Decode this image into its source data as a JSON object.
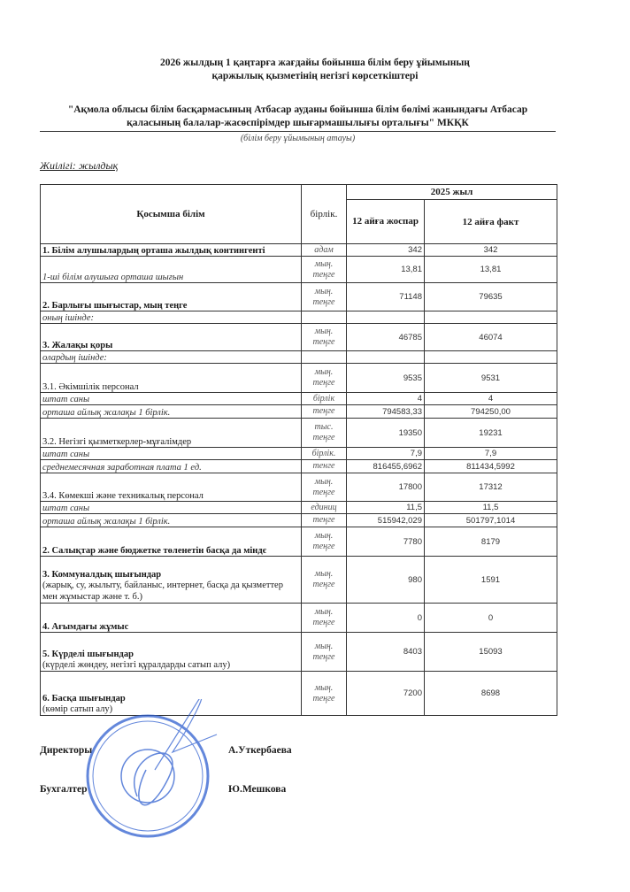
{
  "header": {
    "title_line1": "2026 жылдың 1 қаңтарға жағдайы бойынша білім беру ұйымының",
    "title_line2": "қаржылық қызметінің негізгі көрсеткіштері",
    "org_line1": "\"Ақмола облысы білім басқармасының Атбасар ауданы бойынша білім бөлімі жанындағы Атбасар",
    "org_line2": "қаласының балалар-жасөспірімдер шығармашылығы орталығы\" МКҚК",
    "org_caption": "(білім беру ұйымының атауы)",
    "frequency": "Жиілігі: жылдық"
  },
  "table": {
    "col_name": "Қосымша білім",
    "col_unit": "бірлік.",
    "year_header": "2025 жыл",
    "col_plan": "12 айға жоспар",
    "col_fact": "12 айға факт",
    "rows": [
      {
        "label": "1. Білім алушылардың орташа жылдық контингенті",
        "emphasis": "bold",
        "unit": "адам",
        "plan": "342",
        "fact": "342"
      },
      {
        "label": "1-ші білім алушыға орташа шығын",
        "emphasis": "italic",
        "unit": "мың. теңге",
        "plan": "13,81",
        "fact": "13,81"
      },
      {
        "label": "2. Барлығы шығыстар, мың теңге",
        "emphasis": "bold",
        "unit": "мың. теңге",
        "plan": "71148",
        "fact": "79635"
      },
      {
        "label": "оның ішінде:",
        "emphasis": "italic",
        "unit": "",
        "plan": "",
        "fact": ""
      },
      {
        "label": "3. Жалақы қоры",
        "emphasis": "bold",
        "unit": "мың. теңге",
        "plan": "46785",
        "fact": "46074"
      },
      {
        "label": "олардың ішінде:",
        "emphasis": "italic",
        "unit": "",
        "plan": "",
        "fact": ""
      },
      {
        "label": "3.1. Әкімшілік персонал",
        "emphasis": "normal",
        "unit": "мың. теңге",
        "plan": "9535",
        "fact": "9531"
      },
      {
        "label": "штат саны",
        "emphasis": "italic",
        "unit": "бірлік",
        "plan": "4",
        "fact": "4"
      },
      {
        "label": "орташа айлық жалақы 1 бірлік.",
        "emphasis": "italic",
        "unit": "теңге",
        "plan": "794583,33",
        "fact": "794250,00"
      },
      {
        "label": "3.2. Негізгі қызметкерлер-мұғалімдер",
        "emphasis": "normal",
        "unit": "тыс. теңге",
        "plan": "19350",
        "fact": "19231"
      },
      {
        "label": "штат саны",
        "emphasis": "italic",
        "unit": "бірлік.",
        "plan": "7,9",
        "fact": "7,9"
      },
      {
        "label": "среднемесячная заработная плата 1 ед.",
        "emphasis": "italic",
        "unit": "тенге",
        "plan": "816455,6962",
        "fact": "811434,5992"
      },
      {
        "label": "3.4. Көмекші және техникалық персонал",
        "emphasis": "normal",
        "unit": "мың. теңге",
        "plan": "17800",
        "fact": "17312"
      },
      {
        "label": "штат саны",
        "emphasis": "italic",
        "unit": "единиц",
        "plan": "11,5",
        "fact": "11,5"
      },
      {
        "label": "орташа айлық жалақы 1 бірлік.",
        "emphasis": "italic",
        "unit": "теңге",
        "plan": "515942,029",
        "fact": "501797,1014"
      },
      {
        "label": "2. Салықтар және бюджетке төленетін басқа да міндє",
        "emphasis": "bold",
        "unit": "мың. теңге",
        "plan": "7780",
        "fact": "8179"
      },
      {
        "label": "3. Коммуналдық шығындар",
        "sub": "(жарық, су, жылыту, байланыс, интернет, басқа да қызметтер мен жұмыстар және т. б.)",
        "emphasis": "bold",
        "unit": "мың. теңге",
        "plan": "980",
        "fact": "1591"
      },
      {
        "label": "4. Ағымдағы жұмыс",
        "emphasis": "bold",
        "unit": "мың. теңге",
        "plan": "0",
        "fact": "0"
      },
      {
        "label": "5. Күрделі шығындар",
        "sub": "(күрделі жөндеу, негізгі құралдарды сатып алу)",
        "emphasis": "bold",
        "unit": "мың. теңге",
        "plan": "8403",
        "fact": "15093"
      },
      {
        "label": "6. Басқа шығындар",
        "sub": "(көмір сатып алу)",
        "emphasis": "bold",
        "unit": "мың. теңге",
        "plan": "7200",
        "fact": "8698"
      }
    ]
  },
  "signatures": {
    "director_label": "Директоры",
    "director_name": "А.Уткербаева",
    "accountant_label": "Бухгалтер",
    "accountant_name": "Ю.Мешкова"
  },
  "stamp": {
    "text": "Ақмола облысы білім басқармасының Атбасар ауданы бойынша білім бөлімі жанындағы Атбасар қаласының балалар-жасөспірімдер шығармашылығы орталығы",
    "color": "#2f5fd0"
  }
}
